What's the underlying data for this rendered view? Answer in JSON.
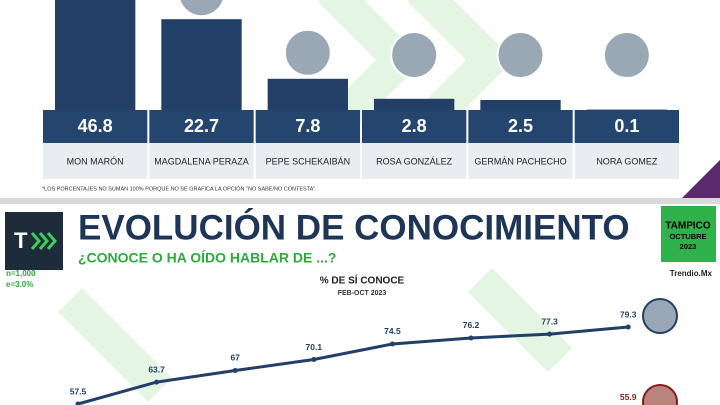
{
  "chart_data": [
    {
      "type": "bar",
      "categories": [
        "MON MARÓN",
        "MAGDALENA PERAZA",
        "PEPE SCHEKAIBÁN",
        "ROSA GONZÁLEZ",
        "GERMÁN PACHECHO",
        "NORA GOMEZ"
      ],
      "values": [
        46.8,
        22.7,
        7.8,
        2.8,
        2.5,
        0.1
      ],
      "color": "#223f68",
      "footnote": "*LOS PORCENTAJES NO SUMAN 100% PORQUE NO SE GRAFICA LA OPCIÓN \"NO SABE/NO CONTESTA\"."
    },
    {
      "type": "line",
      "title": "% DE SÍ CONOCE",
      "subtitle": "FEB-OCT 2023",
      "categories": [
        null,
        null,
        null,
        null,
        null,
        null,
        null,
        null
      ],
      "series": [
        {
          "color": "#223f68",
          "values": [
            57.5,
            63.7,
            67,
            70.1,
            74.5,
            76.2,
            77.3,
            79.3
          ]
        },
        {
          "color": "#8b1a1a",
          "values": [
            null,
            null,
            null,
            null,
            null,
            null,
            null,
            55.9
          ]
        }
      ]
    }
  ],
  "header": {
    "title": "EVOLUCIÓN DE CONOCIMIENTO",
    "subtitle": "¿CONOCE O HA OÍDO HABLAR DE ...?"
  },
  "location": [
    "TAMPICO",
    "OCTUBRE",
    "2023"
  ],
  "notes": [
    "n=1,000",
    "e=3.0%"
  ],
  "source": "Trendio.Mx"
}
